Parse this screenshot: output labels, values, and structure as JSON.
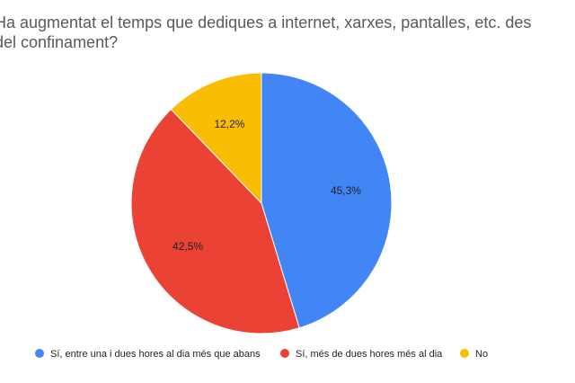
{
  "chart_data": {
    "type": "pie",
    "title_lines": [
      "Ha augmentat el temps que dediques a internet, xarxes, pantalles, etc. des",
      "del confinament?"
    ],
    "slices": [
      {
        "name": "Sí, entre una i dues hores al dia més que abans",
        "value": 45.3,
        "label": "45,3%",
        "color": "#4285F4"
      },
      {
        "name": "Sí, més de dues hores més al dia",
        "value": 42.5,
        "label": "42,5%",
        "color": "#EA4335"
      },
      {
        "name": "No",
        "value": 12.2,
        "label": "12,2%",
        "color": "#FBBC04"
      }
    ],
    "legend_position": "bottom"
  }
}
